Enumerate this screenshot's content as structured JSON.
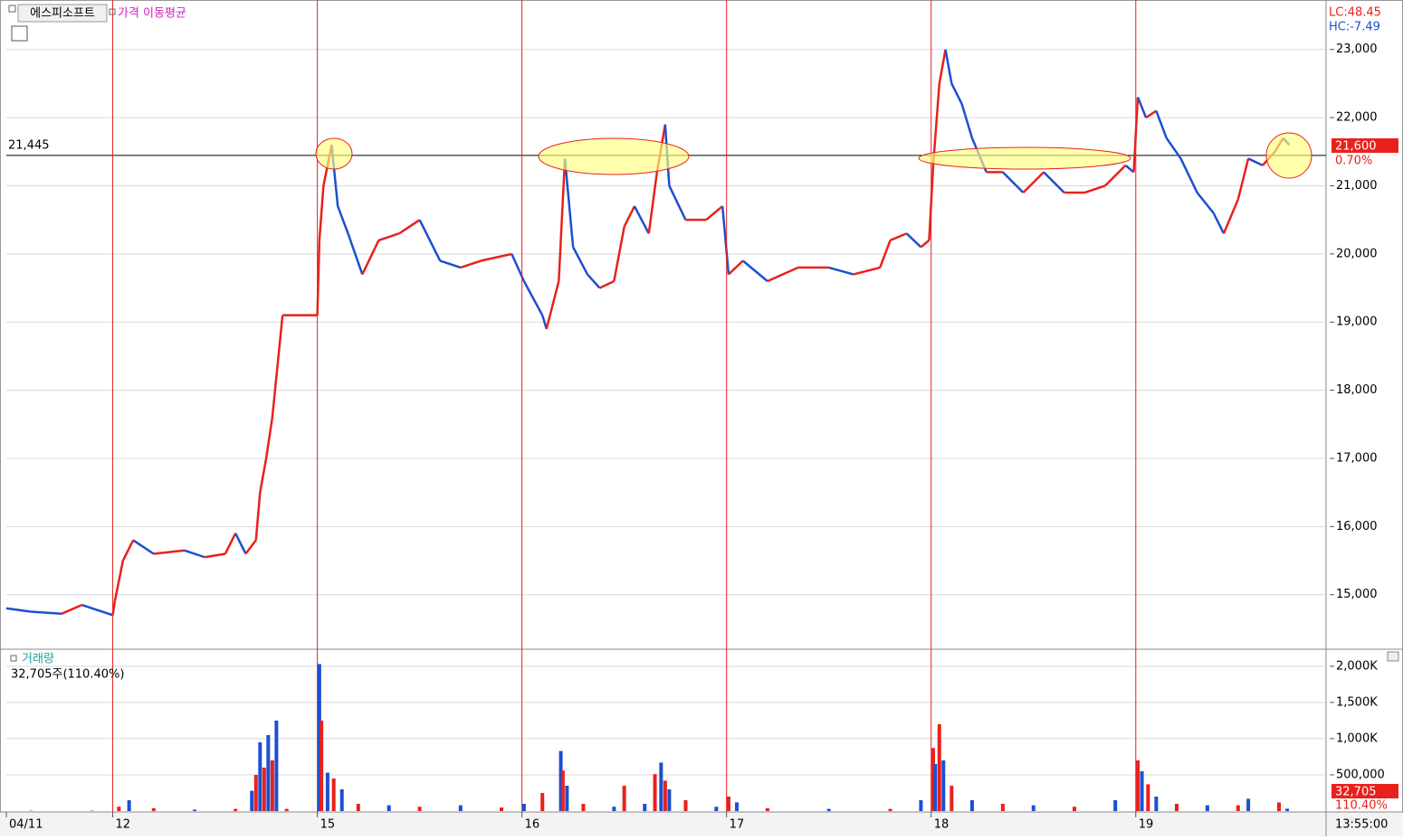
{
  "header": {
    "stock": "에스피소프트",
    "indicator": "가격 이동평균",
    "lc": "LC:48.45",
    "hc": "HC:-7.49",
    "last_price": "21,600",
    "change": "0.70%",
    "last_volume": "32,705",
    "volume_ratio": "110.40%",
    "time": "13:55:00"
  },
  "chart_data": [
    {
      "type": "line",
      "up_color": "#e8211c",
      "down_color": "#1d4fd0",
      "reference_line": {
        "value": 21445,
        "label": "21,445"
      },
      "xlim": [
        0.48,
        6.93
      ],
      "ylim": [
        14200,
        23620
      ],
      "yticks": [
        {
          "value": 15000,
          "label": "15,000"
        },
        {
          "value": 16000,
          "label": "16,000"
        },
        {
          "value": 17000,
          "label": "17,000"
        },
        {
          "value": 18000,
          "label": "18,000"
        },
        {
          "value": 19000,
          "label": "19,000"
        },
        {
          "value": 20000,
          "label": "20,000"
        },
        {
          "value": 21000,
          "label": "21,000"
        },
        {
          "value": 22000,
          "label": "22,000"
        },
        {
          "value": 23000,
          "label": "23,000"
        }
      ],
      "x": [
        0.48,
        0.6,
        0.75,
        0.85,
        1.0,
        1.01,
        1.05,
        1.1,
        1.2,
        1.35,
        1.45,
        1.55,
        1.6,
        1.65,
        1.7,
        1.72,
        1.75,
        1.78,
        1.8,
        1.83,
        2.0,
        2.01,
        2.03,
        2.07,
        2.1,
        2.15,
        2.22,
        2.3,
        2.4,
        2.5,
        2.6,
        2.7,
        2.8,
        2.95,
        3.01,
        3.1,
        3.12,
        3.18,
        3.21,
        3.25,
        3.32,
        3.38,
        3.45,
        3.5,
        3.55,
        3.62,
        3.66,
        3.7,
        3.72,
        3.8,
        3.9,
        3.98,
        4.01,
        4.08,
        4.2,
        4.35,
        4.5,
        4.62,
        4.75,
        4.8,
        4.88,
        4.95,
        4.99,
        5.01,
        5.04,
        5.07,
        5.1,
        5.15,
        5.2,
        5.27,
        5.35,
        5.45,
        5.55,
        5.65,
        5.75,
        5.85,
        5.95,
        5.99,
        6.01,
        6.05,
        6.1,
        6.15,
        6.22,
        6.3,
        6.38,
        6.43,
        6.5,
        6.55,
        6.62,
        6.68,
        6.72,
        6.75
      ],
      "values": [
        14800,
        14750,
        14720,
        14850,
        14700,
        14900,
        15500,
        15800,
        15600,
        15650,
        15550,
        15600,
        15900,
        15600,
        15800,
        16500,
        17000,
        17600,
        18200,
        19100,
        19100,
        20200,
        21000,
        21600,
        20700,
        20300,
        19700,
        20200,
        20300,
        20500,
        19900,
        19800,
        19900,
        20000,
        19600,
        19100,
        18900,
        19600,
        21400,
        20100,
        19700,
        19500,
        19600,
        20400,
        20700,
        20300,
        21200,
        21900,
        21000,
        20500,
        20500,
        20700,
        19700,
        19900,
        19600,
        19800,
        19800,
        19700,
        19800,
        20200,
        20300,
        20100,
        20200,
        21300,
        22500,
        23000,
        22500,
        22200,
        21700,
        21200,
        21200,
        20900,
        21200,
        20900,
        20900,
        21000,
        21300,
        21200,
        22300,
        22000,
        22100,
        21700,
        21400,
        20900,
        20600,
        20300,
        20800,
        21400,
        21300,
        21500,
        21700,
        21600
      ]
    },
    {
      "type": "bar",
      "title": "거래량",
      "subtitle": "32,705주(110.40%)",
      "up_color": "#e8211c",
      "down_color": "#1d4fd0",
      "xlim": [
        0.48,
        6.93
      ],
      "ylim": [
        0,
        2210000
      ],
      "xticks": [
        {
          "value": 0.48,
          "label": "04/11"
        },
        {
          "value": 1,
          "label": "12"
        },
        {
          "value": 2,
          "label": "15"
        },
        {
          "value": 3,
          "label": "16"
        },
        {
          "value": 4,
          "label": "17"
        },
        {
          "value": 5,
          "label": "18"
        },
        {
          "value": 6,
          "label": "19"
        }
      ],
      "yticks": [
        {
          "value": 500000,
          "label": "500,000"
        },
        {
          "value": 1000000,
          "label": "1,000K"
        },
        {
          "value": 1500000,
          "label": "1,500K"
        },
        {
          "value": 2000000,
          "label": "2,000K"
        }
      ],
      "x": [
        0.6,
        0.9,
        1.03,
        1.08,
        1.2,
        1.4,
        1.6,
        1.68,
        1.7,
        1.72,
        1.74,
        1.76,
        1.78,
        1.8,
        1.85,
        2.01,
        2.02,
        2.05,
        2.08,
        2.12,
        2.2,
        2.35,
        2.5,
        2.7,
        2.9,
        3.01,
        3.1,
        3.19,
        3.2,
        3.22,
        3.3,
        3.45,
        3.5,
        3.6,
        3.65,
        3.68,
        3.7,
        3.72,
        3.8,
        3.95,
        4.01,
        4.05,
        4.2,
        4.5,
        4.8,
        4.95,
        5.01,
        5.02,
        5.04,
        5.06,
        5.1,
        5.2,
        5.35,
        5.5,
        5.7,
        5.9,
        6.01,
        6.03,
        6.06,
        6.1,
        6.2,
        6.35,
        6.5,
        6.55,
        6.7,
        6.74
      ],
      "values": [
        5000,
        5000,
        60000,
        150000,
        40000,
        20000,
        30000,
        280000,
        500000,
        950000,
        600000,
        1050000,
        700000,
        1250000,
        30000,
        2030000,
        1250000,
        530000,
        450000,
        300000,
        100000,
        80000,
        60000,
        80000,
        50000,
        100000,
        250000,
        830000,
        560000,
        350000,
        100000,
        60000,
        350000,
        100000,
        510000,
        670000,
        420000,
        300000,
        150000,
        60000,
        200000,
        120000,
        40000,
        30000,
        30000,
        150000,
        870000,
        650000,
        1200000,
        700000,
        350000,
        150000,
        100000,
        80000,
        60000,
        150000,
        700000,
        550000,
        370000,
        200000,
        100000,
        80000,
        80000,
        170000,
        120000,
        32705
      ]
    }
  ]
}
